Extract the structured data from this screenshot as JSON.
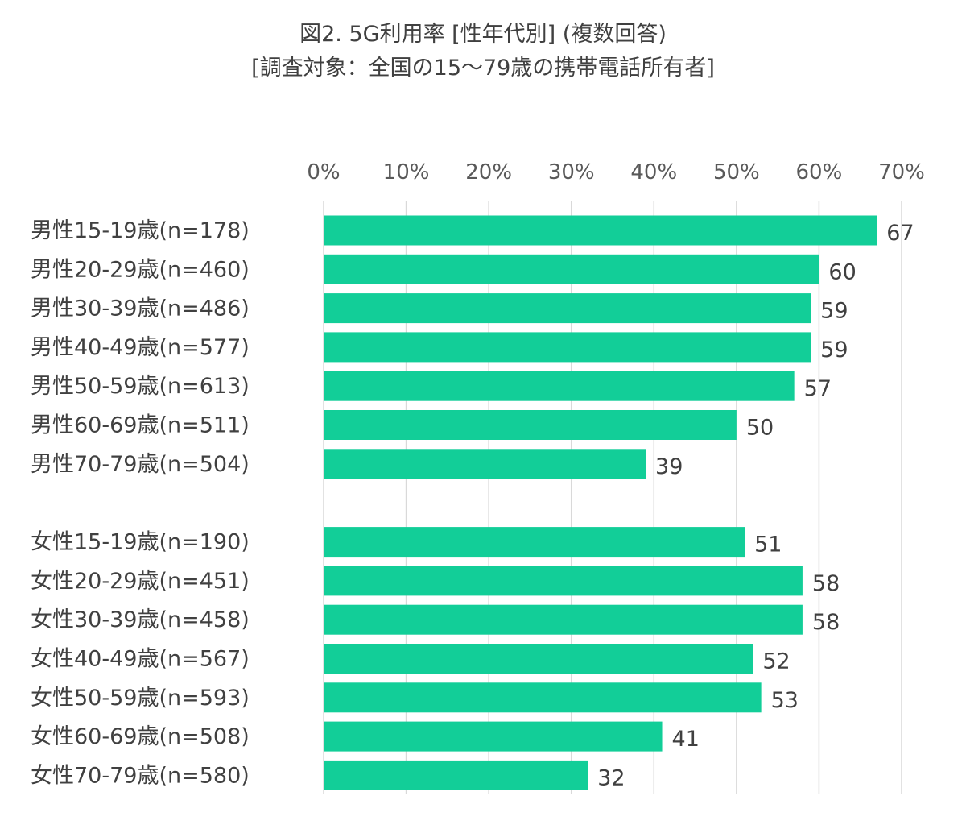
{
  "chart_data": {
    "type": "bar",
    "orientation": "horizontal",
    "title": "図2. 5G利用率 [性年代別] (複数回答)",
    "subtitle": "[調査対象：全国の15～79歳の携帯電話所有者]",
    "xlabel": "",
    "ylabel": "",
    "xlim": [
      0,
      70
    ],
    "tick_values": [
      0,
      10,
      20,
      30,
      40,
      50,
      60,
      70
    ],
    "tick_labels": [
      "0%",
      "10%",
      "20%",
      "30%",
      "40%",
      "50%",
      "60%",
      "70%"
    ],
    "grid": true,
    "bar_color": "#12CE98",
    "categories": [
      "男性15-19歳(n=178)",
      "男性20-29歳(n=460)",
      "男性30-39歳(n=486)",
      "男性40-49歳(n=577)",
      "男性50-59歳(n=613)",
      "男性60-69歳(n=511)",
      "男性70-79歳(n=504)",
      "女性15-19歳(n=190)",
      "女性20-29歳(n=451)",
      "女性30-39歳(n=458)",
      "女性40-49歳(n=567)",
      "女性50-59歳(n=593)",
      "女性60-69歳(n=508)",
      "女性70-79歳(n=580)"
    ],
    "values": [
      67,
      60,
      59,
      59,
      57,
      50,
      39,
      51,
      58,
      58,
      52,
      53,
      41,
      32
    ],
    "groups": [
      {
        "name": "男性",
        "count": 7
      },
      {
        "name": "女性",
        "count": 7
      }
    ]
  }
}
